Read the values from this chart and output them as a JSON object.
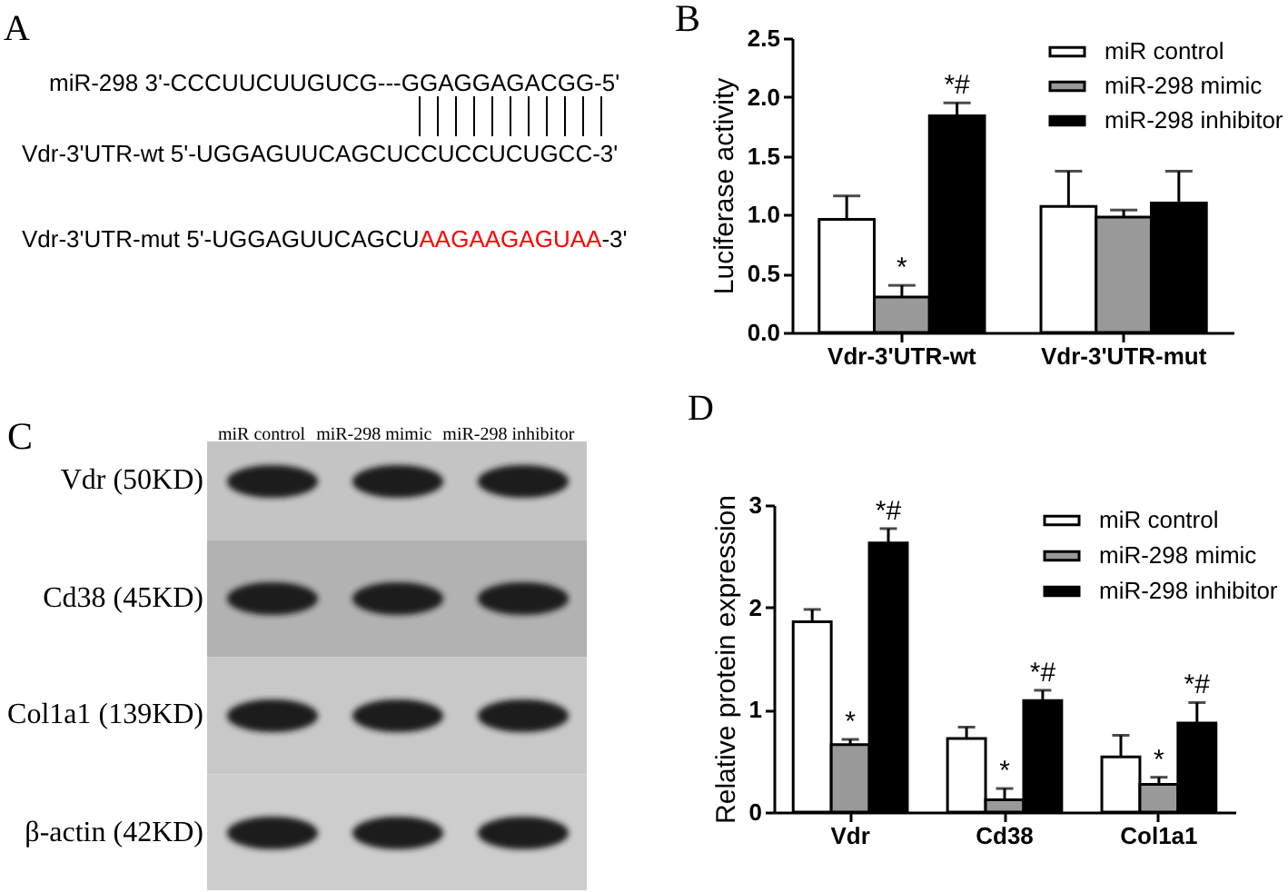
{
  "chart_data": [
    {
      "type": "other",
      "title": "A",
      "annotations": [
        "miR-298 3'-CCCUUCUUGUCG---GGAGGAGACGG-5'",
        "Vdr-3'UTR-wt 5'-UGGAGUUCAGCUCCUCCUCUGCC-3'",
        "Vdr-3'UTR-mut 5'-UGGAGUUCAGCU",
        "AAGAAGAGUAA",
        "-3'"
      ],
      "colors": [
        "#000000",
        "#000000",
        "#000000",
        "#ff0000",
        "#000000"
      ]
    },
    {
      "type": "bar",
      "title": "B",
      "categories": [
        "Vdr-3'UTR-wt",
        "Vdr-3'UTR-mut"
      ],
      "ylabel": "Luciferase activity",
      "ylim": [
        0,
        2.5
      ],
      "yticks": [
        {
          "value": 0,
          "label": "0.0"
        },
        0.5,
        {
          "value": 1,
          "label": "1.0"
        },
        1.5,
        {
          "value": 2,
          "label": "2.0"
        },
        2.5
      ],
      "legend": "top right",
      "series": [
        {
          "name": "miR control",
          "color": "#ffffff",
          "values": [
            0.96,
            1.07
          ],
          "errors": [
            [
              0.96,
              1.16
            ],
            [
              1.07,
              1.37
            ]
          ]
        },
        {
          "name": "miR-298 mimic",
          "color": "#999999",
          "values": [
            0.3,
            0.98
          ],
          "errors": [
            [
              0.3,
              0.4
            ],
            [
              0.98,
              1.04
            ]
          ],
          "value_labels": [
            "*",
            null
          ]
        },
        {
          "name": "miR-298 inhibitor",
          "color": "#000000",
          "values": [
            1.84,
            1.1
          ],
          "errors": [
            [
              1.84,
              1.95
            ],
            [
              1.1,
              1.37
            ]
          ],
          "value_labels": [
            "*#",
            null
          ]
        }
      ]
    },
    {
      "type": "other",
      "title": "C",
      "categories": [
        "miR control",
        "miR-298 mimic",
        "miR-298 inhibitor"
      ],
      "y_categories": [
        "Vdr (50KD)",
        "Cd38 (45KD)",
        "Col1a1 (139KD)",
        "β-actin (42KD)"
      ]
    },
    {
      "type": "bar",
      "title": "D",
      "categories": [
        "Vdr",
        "Cd38",
        "Col1a1"
      ],
      "ylabel": "Relative protein expression",
      "ylim": [
        0,
        3
      ],
      "yticks": [
        0,
        1,
        2,
        3
      ],
      "legend": "top right",
      "series": [
        {
          "name": "miR control",
          "color": "#ffffff",
          "values": [
            1.86,
            0.72,
            0.54
          ],
          "errors": [
            [
              1.86,
              1.98
            ],
            [
              0.72,
              0.83
            ],
            [
              0.54,
              0.75
            ]
          ]
        },
        {
          "name": "miR-298 mimic",
          "color": "#999999",
          "values": [
            0.66,
            0.12,
            0.27
          ],
          "errors": [
            [
              0.66,
              0.71
            ],
            [
              0.12,
              0.23
            ],
            [
              0.27,
              0.34
            ]
          ],
          "value_labels": [
            "*",
            "*",
            "*"
          ]
        },
        {
          "name": "miR-298 inhibitor",
          "color": "#000000",
          "values": [
            2.63,
            1.09,
            0.87
          ],
          "errors": [
            [
              2.63,
              2.77
            ],
            [
              1.09,
              1.19
            ],
            [
              0.87,
              1.07
            ]
          ],
          "value_labels": [
            "*#",
            "*#",
            "*#"
          ]
        }
      ]
    }
  ]
}
